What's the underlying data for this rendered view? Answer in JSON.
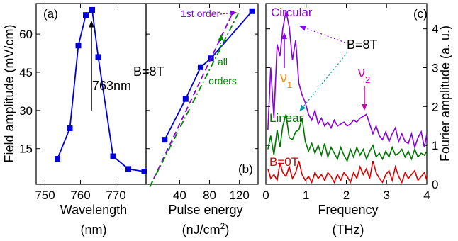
{
  "chart_data": [
    {
      "type": "line",
      "panel_label": "(a)",
      "xlabel": "Wavelength",
      "xunit": "(nm)",
      "ylabel": "Field amplitude (mV/cm)",
      "xlim": [
        747.5,
        778.5
      ],
      "ylim": [
        1,
        72
      ],
      "xticks": [
        750,
        760,
        770
      ],
      "xtick_labels": [
        "750",
        "760",
        "770"
      ],
      "yticks": [
        15,
        30,
        45,
        60
      ],
      "ytick_labels": [
        "15",
        "30",
        "45",
        "60"
      ],
      "series": [
        {
          "x": [
            753.5,
            757,
            759.4,
            761.5,
            763.3,
            765,
            769.2,
            773.5,
            778
          ],
          "y": [
            11,
            23,
            55.5,
            67.5,
            69.5,
            51,
            12,
            7,
            6
          ],
          "color": "#0000dd"
        }
      ],
      "annotations": [
        {
          "text": "763nm",
          "arrow_to": [
            763.3,
            69.5
          ]
        }
      ]
    },
    {
      "type": "line",
      "panel_label": "(b)",
      "xlabel": "Pulse energy",
      "xunit_prefix": "(nJ/cm",
      "xunit_sup": "2",
      "xunit_suffix": ")",
      "xlim": [
        -5,
        145
      ],
      "ylim": [
        1,
        72
      ],
      "xticks": [
        40,
        80,
        120
      ],
      "xtick_labels": [
        "40",
        "80",
        "120"
      ],
      "field_label": "B=8T",
      "series": [
        {
          "x": [
            20,
            48,
            68,
            82,
            137
          ],
          "y": [
            18.5,
            34.5,
            47,
            50.5,
            69
          ],
          "color": "#0000dd",
          "style": "solid"
        },
        {
          "x": [
            0,
            112
          ],
          "y": [
            0,
            69
          ],
          "color": "#8800ee",
          "style": "dash"
        },
        {
          "x": [
            0,
            120
          ],
          "y": [
            0,
            69
          ],
          "color": "#008800",
          "style": "dashdot"
        }
      ],
      "annotations": [
        {
          "text": "1st order"
        },
        {
          "text": "all"
        },
        {
          "text": "orders"
        }
      ]
    },
    {
      "type": "line",
      "panel_label": "(c)",
      "xlabel": "Frequency",
      "xunit": "(THz)",
      "ylabel": "Fourier amplitude  (a. u.)",
      "xlim": [
        0,
        4
      ],
      "ylim": [
        0,
        4.65
      ],
      "xticks": [
        0,
        1,
        2,
        3,
        4
      ],
      "xtick_labels": [
        "0",
        "1",
        "2",
        "3",
        "4"
      ],
      "yticks": [
        0,
        1,
        2,
        3,
        4
      ],
      "ytick_labels": [
        "0",
        "1",
        "2",
        "3",
        "4"
      ],
      "series": [
        {
          "name": "Circular",
          "color": "#8800dd",
          "x": [
            0.05,
            0.12,
            0.2,
            0.28,
            0.35,
            0.42,
            0.5,
            0.58,
            0.66,
            0.74,
            0.82,
            0.9,
            0.98,
            1.06,
            1.14,
            1.22,
            1.3,
            1.38,
            1.46,
            1.54,
            1.62,
            1.7,
            1.78,
            1.86,
            1.94,
            2.02,
            2.1,
            2.18,
            2.26,
            2.34,
            2.42,
            2.5,
            2.58,
            2.66,
            2.74,
            2.82,
            2.9,
            2.98,
            3.06,
            3.14,
            3.22,
            3.3,
            3.38,
            3.46,
            3.54,
            3.62,
            3.7,
            3.78,
            3.86,
            3.94,
            4.0
          ],
          "y": [
            1.4,
            3.0,
            1.7,
            3.6,
            3.3,
            4.0,
            4.45,
            4.05,
            3.2,
            3.7,
            2.6,
            2.3,
            2.1,
            1.8,
            1.65,
            1.9,
            1.55,
            1.7,
            1.5,
            1.6,
            1.45,
            1.65,
            1.5,
            1.55,
            1.6,
            1.5,
            1.55,
            1.65,
            1.6,
            1.7,
            1.75,
            1.8,
            1.55,
            1.3,
            1.5,
            1.25,
            1.15,
            1.35,
            1.1,
            1.3,
            1.45,
            1.1,
            1.3,
            1.1,
            1.05,
            1.3,
            0.95,
            1.2,
            1.35,
            0.95,
            1.3
          ]
        },
        {
          "name": "Linear",
          "color": "#007700",
          "x": [
            0.05,
            0.12,
            0.2,
            0.28,
            0.35,
            0.42,
            0.5,
            0.58,
            0.66,
            0.74,
            0.82,
            0.9,
            0.98,
            1.06,
            1.14,
            1.22,
            1.3,
            1.38,
            1.46,
            1.54,
            1.62,
            1.7,
            1.78,
            1.86,
            1.94,
            2.02,
            2.1,
            2.18,
            2.26,
            2.34,
            2.42,
            2.5,
            2.58,
            2.66,
            2.74,
            2.82,
            2.9,
            2.98,
            3.06,
            3.14,
            3.22,
            3.3,
            3.38,
            3.46,
            3.54,
            3.62,
            3.7,
            3.78,
            3.86,
            3.94,
            4.0
          ],
          "y": [
            0.9,
            1.25,
            0.75,
            1.4,
            0.95,
            1.5,
            1.8,
            1.2,
            1.15,
            1.35,
            1.4,
            1.7,
            1.1,
            0.85,
            1.05,
            0.8,
            1.0,
            0.75,
            1.05,
            0.7,
            0.95,
            0.8,
            0.65,
            0.95,
            0.75,
            0.6,
            0.9,
            0.7,
            0.95,
            0.75,
            0.9,
            0.65,
            0.85,
            1.0,
            0.7,
            0.8,
            0.65,
            0.85,
            0.7,
            0.95,
            0.75,
            0.8,
            0.9,
            0.7,
            0.85,
            0.65,
            0.9,
            0.7,
            0.8,
            0.75,
            0.85
          ]
        },
        {
          "name": "B=0T",
          "color": "#dd0000",
          "x": [
            0.05,
            0.12,
            0.2,
            0.28,
            0.35,
            0.42,
            0.5,
            0.58,
            0.66,
            0.74,
            0.82,
            0.9,
            0.98,
            1.06,
            1.14,
            1.22,
            1.3,
            1.38,
            1.46,
            1.54,
            1.62,
            1.7,
            1.78,
            1.86,
            1.94,
            2.02,
            2.1,
            2.18,
            2.26,
            2.34,
            2.42,
            2.5,
            2.58,
            2.66,
            2.74,
            2.82,
            2.9,
            2.98,
            3.06,
            3.14,
            3.22,
            3.3,
            3.38,
            3.46,
            3.54,
            3.62,
            3.7,
            3.78,
            3.86,
            3.94,
            4.0
          ],
          "y": [
            0.4,
            0.15,
            0.25,
            0.1,
            0.55,
            0.3,
            0.2,
            0.45,
            0.15,
            0.3,
            0.6,
            0.25,
            0.1,
            0.2,
            0.05,
            0.3,
            0.15,
            0.25,
            0.1,
            0.3,
            0.2,
            0.05,
            0.25,
            0.1,
            0.3,
            0.2,
            0.05,
            0.3,
            0.15,
            0.45,
            0.25,
            0.4,
            0.15,
            0.6,
            0.3,
            0.15,
            0.05,
            0.25,
            0.35,
            0.1,
            0.45,
            0.2,
            0.05,
            0.3,
            0.15,
            0.25,
            0.35,
            0.1,
            0.2,
            0.3,
            0.1
          ]
        }
      ],
      "annotations": [
        {
          "text": "B=8T"
        },
        {
          "text": "ν",
          "sub": "1"
        },
        {
          "text": "ν",
          "sub": "2"
        }
      ]
    }
  ]
}
